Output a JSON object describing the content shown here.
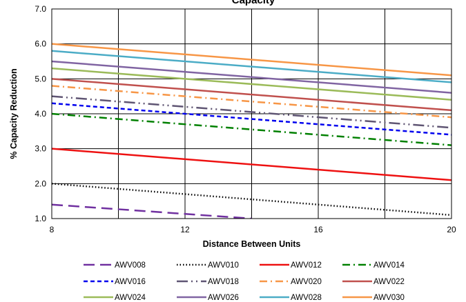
{
  "chart_data": {
    "type": "line",
    "title": "Capacity",
    "xlabel": "Distance Between Units",
    "ylabel": "% Capacity Reduction",
    "xlim": [
      8,
      20
    ],
    "ylim": [
      1.0,
      7.0
    ],
    "x_ticks": [
      "8",
      "12",
      "16",
      "20"
    ],
    "y_ticks": [
      "1.0",
      "2.0",
      "3.0",
      "4.0",
      "5.0",
      "6.0",
      "7.0"
    ],
    "grid": true,
    "legend_position": "bottom",
    "series": [
      {
        "name": "AWV008",
        "x": [
          8,
          14
        ],
        "values": [
          1.4,
          1.0
        ],
        "color": "#7030A0",
        "dash": "long-dash"
      },
      {
        "name": "AWV010",
        "x": [
          8,
          20
        ],
        "values": [
          2.0,
          1.1
        ],
        "color": "#000000",
        "dash": "dot"
      },
      {
        "name": "AWV012",
        "x": [
          8,
          20
        ],
        "values": [
          3.0,
          2.1
        ],
        "color": "#EE1111",
        "dash": "solid"
      },
      {
        "name": "AWV014",
        "x": [
          8,
          20
        ],
        "values": [
          4.0,
          3.1
        ],
        "color": "#008000",
        "dash": "dash-dot"
      },
      {
        "name": "AWV016",
        "x": [
          8,
          20
        ],
        "values": [
          4.3,
          3.4
        ],
        "color": "#0000EE",
        "dash": "dash"
      },
      {
        "name": "AWV018",
        "x": [
          8,
          20
        ],
        "values": [
          4.5,
          3.6
        ],
        "color": "#5F5573",
        "dash": "long-dash-dot-dot"
      },
      {
        "name": "AWV020",
        "x": [
          8,
          20
        ],
        "values": [
          4.8,
          3.9
        ],
        "color": "#F79646",
        "dash": "dash-dot"
      },
      {
        "name": "AWV022",
        "x": [
          8,
          20
        ],
        "values": [
          5.0,
          4.1
        ],
        "color": "#C0504D",
        "dash": "solid"
      },
      {
        "name": "AWV024",
        "x": [
          8,
          20
        ],
        "values": [
          5.3,
          4.4
        ],
        "color": "#9BBB59",
        "dash": "solid"
      },
      {
        "name": "AWV026",
        "x": [
          8,
          20
        ],
        "values": [
          5.5,
          4.6
        ],
        "color": "#8064A2",
        "dash": "solid"
      },
      {
        "name": "AWV028",
        "x": [
          8,
          20
        ],
        "values": [
          5.8,
          4.9
        ],
        "color": "#4BACC6",
        "dash": "solid"
      },
      {
        "name": "AWV030",
        "x": [
          8,
          20
        ],
        "values": [
          6.0,
          5.1
        ],
        "color": "#F79646",
        "dash": "solid"
      }
    ]
  }
}
